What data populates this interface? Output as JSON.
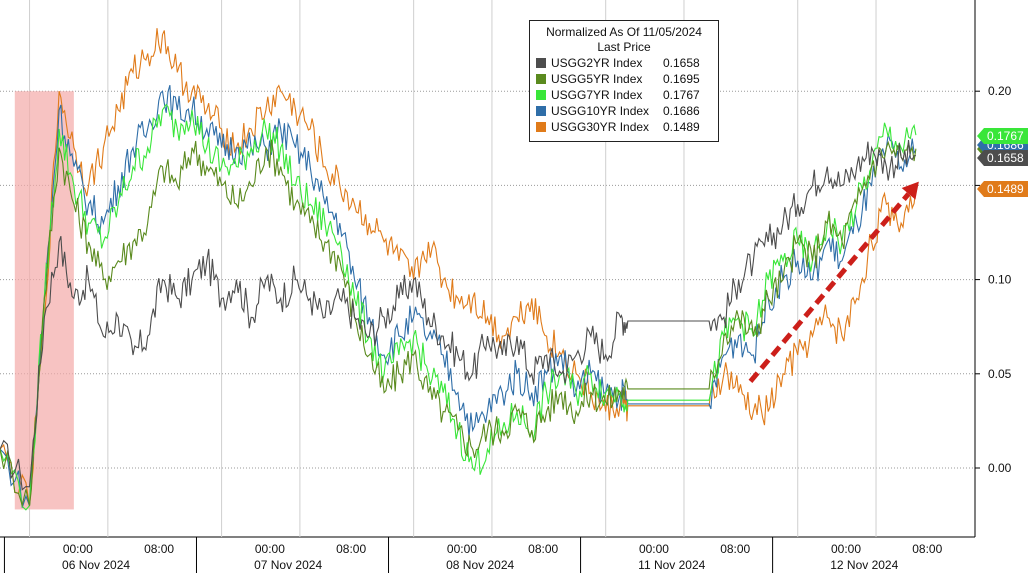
{
  "chart_data": {
    "type": "line",
    "legend": {
      "title": "Normalized As Of 11/05/2024",
      "subtitle": "Last Price",
      "placement": "top-center"
    },
    "y_axis": {
      "side": "right",
      "ticks": [
        "0.20",
        "0.15",
        "0.10",
        "0.05",
        "0.00"
      ],
      "tick_values": [
        0.2,
        0.15,
        0.1,
        0.05,
        0.0
      ],
      "ylim": [
        -0.04,
        0.25
      ]
    },
    "x_axis": {
      "time_labels": [
        "00:00",
        "08:00",
        "00:00",
        "08:00",
        "00:00",
        "08:00",
        "00:00",
        "08:00",
        "00:00",
        "08:00"
      ],
      "day_labels": [
        "06 Nov 2024",
        "07 Nov 2024",
        "08 Nov 2024",
        "11 Nov 2024",
        "12 Nov 2024"
      ]
    },
    "grid": true,
    "series": [
      {
        "name": "USGG2YR Index",
        "value_label": "0.1658",
        "last": 0.1658,
        "color": "#4d4d4d",
        "points": [
          [
            0,
            0.01
          ],
          [
            2,
            -0.01
          ],
          [
            3,
            0.08
          ],
          [
            4,
            0.12
          ],
          [
            5,
            0.09
          ],
          [
            6,
            0.1
          ],
          [
            7,
            0.07
          ],
          [
            8,
            0.08
          ],
          [
            9,
            0.06
          ],
          [
            10,
            0.07
          ],
          [
            11,
            0.1
          ],
          [
            12,
            0.09
          ],
          [
            13,
            0.1
          ],
          [
            14,
            0.11
          ],
          [
            15,
            0.09
          ],
          [
            16,
            0.1
          ],
          [
            17,
            0.08
          ],
          [
            18,
            0.1
          ],
          [
            19,
            0.09
          ],
          [
            20,
            0.1
          ],
          [
            21,
            0.09
          ],
          [
            22,
            0.08
          ],
          [
            23,
            0.09
          ],
          [
            24,
            0.08
          ],
          [
            25,
            0.07
          ],
          [
            26,
            0.08
          ],
          [
            27,
            0.09
          ],
          [
            28,
            0.1
          ],
          [
            29,
            0.08
          ],
          [
            30,
            0.07
          ],
          [
            31,
            0.06
          ],
          [
            32,
            0.05
          ],
          [
            33,
            0.07
          ],
          [
            34,
            0.06
          ],
          [
            35,
            0.07
          ],
          [
            36,
            0.05
          ],
          [
            37,
            0.06
          ],
          [
            38,
            0.05
          ],
          [
            39,
            0.06
          ],
          [
            40,
            0.07
          ],
          [
            41,
            0.06
          ],
          [
            42,
            0.08
          ],
          [
            42.5,
            0.078
          ],
          [
            48,
            0.078
          ],
          [
            49,
            0.08
          ],
          [
            50,
            0.1
          ],
          [
            51,
            0.11
          ],
          [
            52,
            0.12
          ],
          [
            53,
            0.13
          ],
          [
            54,
            0.14
          ],
          [
            55,
            0.15
          ],
          [
            56,
            0.16
          ],
          [
            57,
            0.15
          ],
          [
            58,
            0.16
          ],
          [
            59,
            0.17
          ],
          [
            60,
            0.16
          ],
          [
            61,
            0.165
          ],
          [
            62,
            0.1658
          ]
        ]
      },
      {
        "name": "USGG5YR Index",
        "value_label": "0.1695",
        "last": 0.1695,
        "color": "#5a8a1e",
        "points": [
          [
            0,
            0.01
          ],
          [
            2,
            -0.02
          ],
          [
            3,
            0.09
          ],
          [
            4,
            0.17
          ],
          [
            5,
            0.14
          ],
          [
            6,
            0.12
          ],
          [
            7,
            0.1
          ],
          [
            8,
            0.11
          ],
          [
            9,
            0.12
          ],
          [
            10,
            0.13
          ],
          [
            11,
            0.16
          ],
          [
            12,
            0.15
          ],
          [
            13,
            0.17
          ],
          [
            14,
            0.16
          ],
          [
            15,
            0.15
          ],
          [
            16,
            0.14
          ],
          [
            17,
            0.15
          ],
          [
            18,
            0.17
          ],
          [
            19,
            0.16
          ],
          [
            20,
            0.14
          ],
          [
            21,
            0.13
          ],
          [
            22,
            0.12
          ],
          [
            23,
            0.11
          ],
          [
            24,
            0.08
          ],
          [
            25,
            0.06
          ],
          [
            26,
            0.04
          ],
          [
            27,
            0.05
          ],
          [
            28,
            0.06
          ],
          [
            29,
            0.04
          ],
          [
            30,
            0.03
          ],
          [
            31,
            0.02
          ],
          [
            32,
            0.01
          ],
          [
            33,
            0.02
          ],
          [
            34,
            0.02
          ],
          [
            35,
            0.03
          ],
          [
            36,
            0.02
          ],
          [
            37,
            0.03
          ],
          [
            38,
            0.04
          ],
          [
            39,
            0.03
          ],
          [
            40,
            0.04
          ],
          [
            41,
            0.035
          ],
          [
            42,
            0.04
          ],
          [
            42.5,
            0.042
          ],
          [
            48,
            0.042
          ],
          [
            49,
            0.07
          ],
          [
            50,
            0.08
          ],
          [
            51,
            0.07
          ],
          [
            52,
            0.09
          ],
          [
            53,
            0.1
          ],
          [
            54,
            0.12
          ],
          [
            55,
            0.11
          ],
          [
            56,
            0.13
          ],
          [
            57,
            0.12
          ],
          [
            58,
            0.14
          ],
          [
            59,
            0.16
          ],
          [
            60,
            0.17
          ],
          [
            61,
            0.165
          ],
          [
            62,
            0.1695
          ]
        ]
      },
      {
        "name": "USGG7YR Index",
        "value_label": "0.1767",
        "last": 0.1767,
        "color": "#39e639",
        "points": [
          [
            0,
            0.01
          ],
          [
            2,
            -0.02
          ],
          [
            3,
            0.09
          ],
          [
            4,
            0.18
          ],
          [
            5,
            0.15
          ],
          [
            6,
            0.13
          ],
          [
            7,
            0.12
          ],
          [
            8,
            0.14
          ],
          [
            9,
            0.16
          ],
          [
            10,
            0.17
          ],
          [
            11,
            0.19
          ],
          [
            12,
            0.18
          ],
          [
            13,
            0.19
          ],
          [
            14,
            0.17
          ],
          [
            15,
            0.16
          ],
          [
            16,
            0.16
          ],
          [
            17,
            0.17
          ],
          [
            18,
            0.18
          ],
          [
            19,
            0.17
          ],
          [
            20,
            0.15
          ],
          [
            21,
            0.14
          ],
          [
            22,
            0.13
          ],
          [
            23,
            0.12
          ],
          [
            24,
            0.09
          ],
          [
            25,
            0.07
          ],
          [
            26,
            0.05
          ],
          [
            27,
            0.06
          ],
          [
            28,
            0.07
          ],
          [
            29,
            0.05
          ],
          [
            30,
            0.04
          ],
          [
            31,
            0.02
          ],
          [
            32,
            0.0
          ],
          [
            33,
            0.01
          ],
          [
            34,
            0.02
          ],
          [
            35,
            0.03
          ],
          [
            36,
            0.02
          ],
          [
            37,
            0.04
          ],
          [
            38,
            0.05
          ],
          [
            39,
            0.04
          ],
          [
            40,
            0.05
          ],
          [
            41,
            0.04
          ],
          [
            42,
            0.04
          ],
          [
            42.5,
            0.036
          ],
          [
            48,
            0.036
          ],
          [
            49,
            0.07
          ],
          [
            50,
            0.08
          ],
          [
            51,
            0.07
          ],
          [
            52,
            0.1
          ],
          [
            53,
            0.11
          ],
          [
            54,
            0.12
          ],
          [
            55,
            0.11
          ],
          [
            56,
            0.13
          ],
          [
            57,
            0.12
          ],
          [
            58,
            0.14
          ],
          [
            59,
            0.16
          ],
          [
            60,
            0.18
          ],
          [
            61,
            0.17
          ],
          [
            62,
            0.1767
          ]
        ]
      },
      {
        "name": "USGG10YR Index",
        "value_label": "0.1686",
        "last": 0.1686,
        "color": "#2f6ea8",
        "points": [
          [
            0,
            0.01
          ],
          [
            2,
            -0.02
          ],
          [
            3,
            0.09
          ],
          [
            4,
            0.19
          ],
          [
            5,
            0.16
          ],
          [
            6,
            0.14
          ],
          [
            7,
            0.13
          ],
          [
            8,
            0.15
          ],
          [
            9,
            0.17
          ],
          [
            10,
            0.18
          ],
          [
            11,
            0.2
          ],
          [
            12,
            0.19
          ],
          [
            13,
            0.19
          ],
          [
            14,
            0.18
          ],
          [
            15,
            0.17
          ],
          [
            16,
            0.17
          ],
          [
            17,
            0.17
          ],
          [
            18,
            0.17
          ],
          [
            19,
            0.18
          ],
          [
            20,
            0.17
          ],
          [
            21,
            0.16
          ],
          [
            22,
            0.14
          ],
          [
            23,
            0.13
          ],
          [
            24,
            0.1
          ],
          [
            25,
            0.08
          ],
          [
            26,
            0.06
          ],
          [
            27,
            0.07
          ],
          [
            28,
            0.08
          ],
          [
            29,
            0.07
          ],
          [
            30,
            0.06
          ],
          [
            31,
            0.04
          ],
          [
            32,
            0.02
          ],
          [
            33,
            0.03
          ],
          [
            34,
            0.04
          ],
          [
            35,
            0.05
          ],
          [
            36,
            0.04
          ],
          [
            37,
            0.05
          ],
          [
            38,
            0.06
          ],
          [
            39,
            0.04
          ],
          [
            40,
            0.05
          ],
          [
            41,
            0.04
          ],
          [
            42,
            0.04
          ],
          [
            42.5,
            0.034
          ],
          [
            48,
            0.034
          ],
          [
            49,
            0.06
          ],
          [
            50,
            0.07
          ],
          [
            51,
            0.06
          ],
          [
            52,
            0.09
          ],
          [
            53,
            0.1
          ],
          [
            54,
            0.11
          ],
          [
            55,
            0.1
          ],
          [
            56,
            0.12
          ],
          [
            57,
            0.11
          ],
          [
            58,
            0.13
          ],
          [
            59,
            0.15
          ],
          [
            60,
            0.17
          ],
          [
            61,
            0.16
          ],
          [
            62,
            0.1686
          ]
        ]
      },
      {
        "name": "USGG30YR Index",
        "value_label": "0.1489",
        "last": 0.1489,
        "color": "#e07b1a",
        "points": [
          [
            0,
            0.01
          ],
          [
            2,
            -0.02
          ],
          [
            3,
            0.08
          ],
          [
            4,
            0.2
          ],
          [
            5,
            0.17
          ],
          [
            6,
            0.15
          ],
          [
            7,
            0.17
          ],
          [
            8,
            0.19
          ],
          [
            9,
            0.21
          ],
          [
            10,
            0.22
          ],
          [
            11,
            0.23
          ],
          [
            12,
            0.21
          ],
          [
            13,
            0.2
          ],
          [
            14,
            0.19
          ],
          [
            15,
            0.18
          ],
          [
            16,
            0.17
          ],
          [
            17,
            0.18
          ],
          [
            18,
            0.19
          ],
          [
            19,
            0.2
          ],
          [
            20,
            0.19
          ],
          [
            21,
            0.18
          ],
          [
            22,
            0.16
          ],
          [
            23,
            0.15
          ],
          [
            24,
            0.14
          ],
          [
            25,
            0.13
          ],
          [
            26,
            0.12
          ],
          [
            27,
            0.11
          ],
          [
            28,
            0.1
          ],
          [
            29,
            0.12
          ],
          [
            30,
            0.1
          ],
          [
            31,
            0.09
          ],
          [
            32,
            0.09
          ],
          [
            33,
            0.08
          ],
          [
            34,
            0.07
          ],
          [
            35,
            0.08
          ],
          [
            36,
            0.09
          ],
          [
            37,
            0.07
          ],
          [
            38,
            0.06
          ],
          [
            39,
            0.05
          ],
          [
            40,
            0.04
          ],
          [
            41,
            0.03
          ],
          [
            42,
            0.035
          ],
          [
            42.5,
            0.033
          ],
          [
            48,
            0.033
          ],
          [
            49,
            0.05
          ],
          [
            50,
            0.04
          ],
          [
            51,
            0.03
          ],
          [
            52,
            0.03
          ],
          [
            53,
            0.05
          ],
          [
            54,
            0.06
          ],
          [
            55,
            0.07
          ],
          [
            56,
            0.08
          ],
          [
            57,
            0.07
          ],
          [
            58,
            0.09
          ],
          [
            59,
            0.12
          ],
          [
            60,
            0.14
          ],
          [
            61,
            0.13
          ],
          [
            62,
            0.1489
          ]
        ]
      }
    ],
    "annotations": {
      "highlight_band": {
        "x0": 1,
        "x1": 5,
        "y0": -0.022,
        "y1": 0.2,
        "color": "#f4a9a8"
      },
      "arrow": {
        "from": [
          50.8,
          0.046
        ],
        "to": [
          62.2,
          0.152
        ],
        "color": "#cc1f1a"
      }
    }
  }
}
